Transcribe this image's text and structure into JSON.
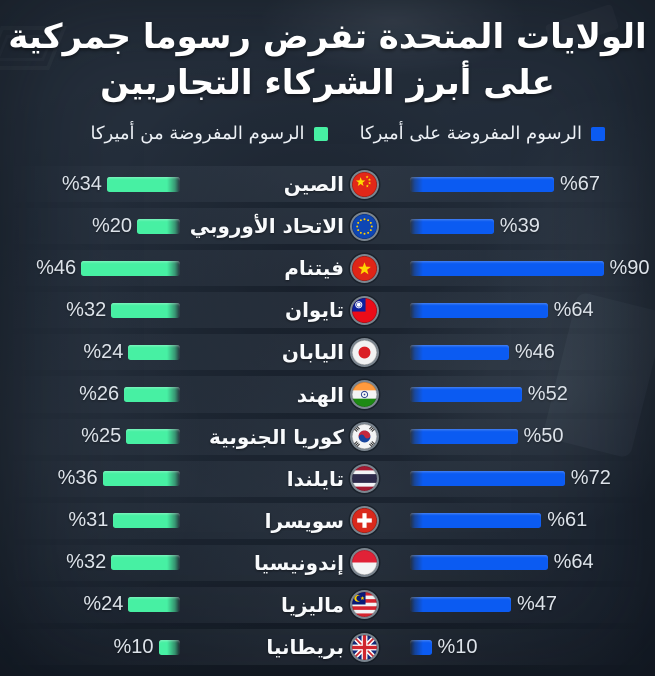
{
  "title": {
    "line1": "الولايات المتحدة تفرض رسوما جمركية",
    "line2": "على أبرز الشركاء التجاريين"
  },
  "legend": {
    "items": [
      {
        "label": "الرسوم المفروضة على أميركا",
        "color": "#0b5bf2"
      },
      {
        "label": "الرسوم المفروضة من أميركا",
        "color": "#47f0a3"
      }
    ]
  },
  "chart_data": {
    "type": "bar",
    "orientation": "horizontal-bilateral-rtl",
    "unit": "percent",
    "value_prefix": "%",
    "title": "الولايات المتحدة تفرض رسوما جمركية على أبرز الشركاء التجاريين",
    "categories": [
      "الصين",
      "الاتحاد الأوروبي",
      "فيتنام",
      "تايوان",
      "اليابان",
      "الهند",
      "كوريا الجنوبية",
      "تايلندا",
      "سويسرا",
      "إندونيسيا",
      "ماليزيا",
      "بريطانيا"
    ],
    "flags": [
      "china",
      "eu",
      "vietnam",
      "taiwan",
      "japan",
      "india",
      "south-korea",
      "thailand",
      "switzerland",
      "indonesia",
      "malaysia",
      "uk"
    ],
    "series": [
      {
        "name": "الرسوم المفروضة على أميركا",
        "side": "right",
        "color": "#0b5bf2",
        "values": [
          67,
          39,
          90,
          64,
          46,
          52,
          50,
          72,
          61,
          64,
          47,
          10
        ]
      },
      {
        "name": "الرسوم المفروضة من أميركا",
        "side": "left",
        "color": "#47f0a3",
        "values": [
          34,
          20,
          46,
          32,
          24,
          26,
          25,
          36,
          31,
          32,
          24,
          10
        ]
      }
    ],
    "xlim": [
      0,
      100
    ],
    "grid": false,
    "legend_position": "top"
  }
}
